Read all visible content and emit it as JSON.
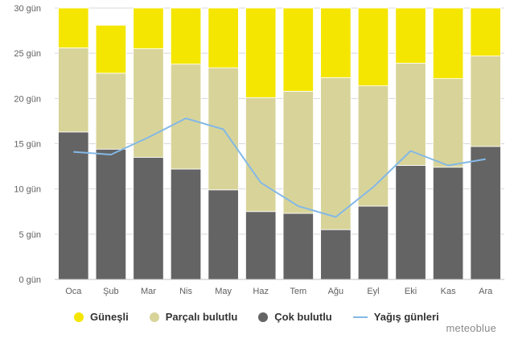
{
  "chart_data": {
    "type": "bar",
    "stacked": true,
    "categories": [
      "Oca",
      "Şub",
      "Mar",
      "Nis",
      "May",
      "Haz",
      "Tem",
      "Ağu",
      "Eyl",
      "Eki",
      "Kas",
      "Ara"
    ],
    "series": [
      {
        "name": "Güneşli",
        "color": "#f4e600",
        "values": [
          4.4,
          5.3,
          5.5,
          6.2,
          7.6,
          9.9,
          10.2,
          8.7,
          9.6,
          6.1,
          7.8,
          5.3
        ]
      },
      {
        "name": "Parçalı bulutlu",
        "color": "#d8d499",
        "values": [
          9.3,
          8.4,
          12.0,
          11.6,
          13.5,
          12.6,
          13.5,
          16.8,
          13.3,
          11.3,
          9.8,
          10.0
        ]
      },
      {
        "name": "Çok bulutlu",
        "color": "#646464",
        "values": [
          16.3,
          14.4,
          13.5,
          12.2,
          9.9,
          7.5,
          7.3,
          5.5,
          8.1,
          12.6,
          12.4,
          14.7
        ]
      }
    ],
    "line_series": {
      "name": "Yağış günleri",
      "color": "#84b8e6",
      "values": [
        14.1,
        13.8,
        15.7,
        17.8,
        16.6,
        10.7,
        8.1,
        6.9,
        10.2,
        14.2,
        12.6,
        13.3
      ]
    },
    "yticks": [
      "0 gün",
      "5 gün",
      "10 gün",
      "15 gün",
      "20 gün",
      "25 gün",
      "30 gün"
    ],
    "ylim": [
      0,
      30
    ],
    "grid": true,
    "legend_position": "bottom-left"
  },
  "legend": [
    {
      "label": "Güneşli",
      "color": "#f4e600",
      "kind": "dot"
    },
    {
      "label": "Parçalı bulutlu",
      "color": "#d8d499",
      "kind": "dot"
    },
    {
      "label": "Çok bulutlu",
      "color": "#646464",
      "kind": "dot"
    },
    {
      "label": "Yağış günleri",
      "color": "#84b8e6",
      "kind": "line"
    }
  ],
  "brand": "meteoblue"
}
